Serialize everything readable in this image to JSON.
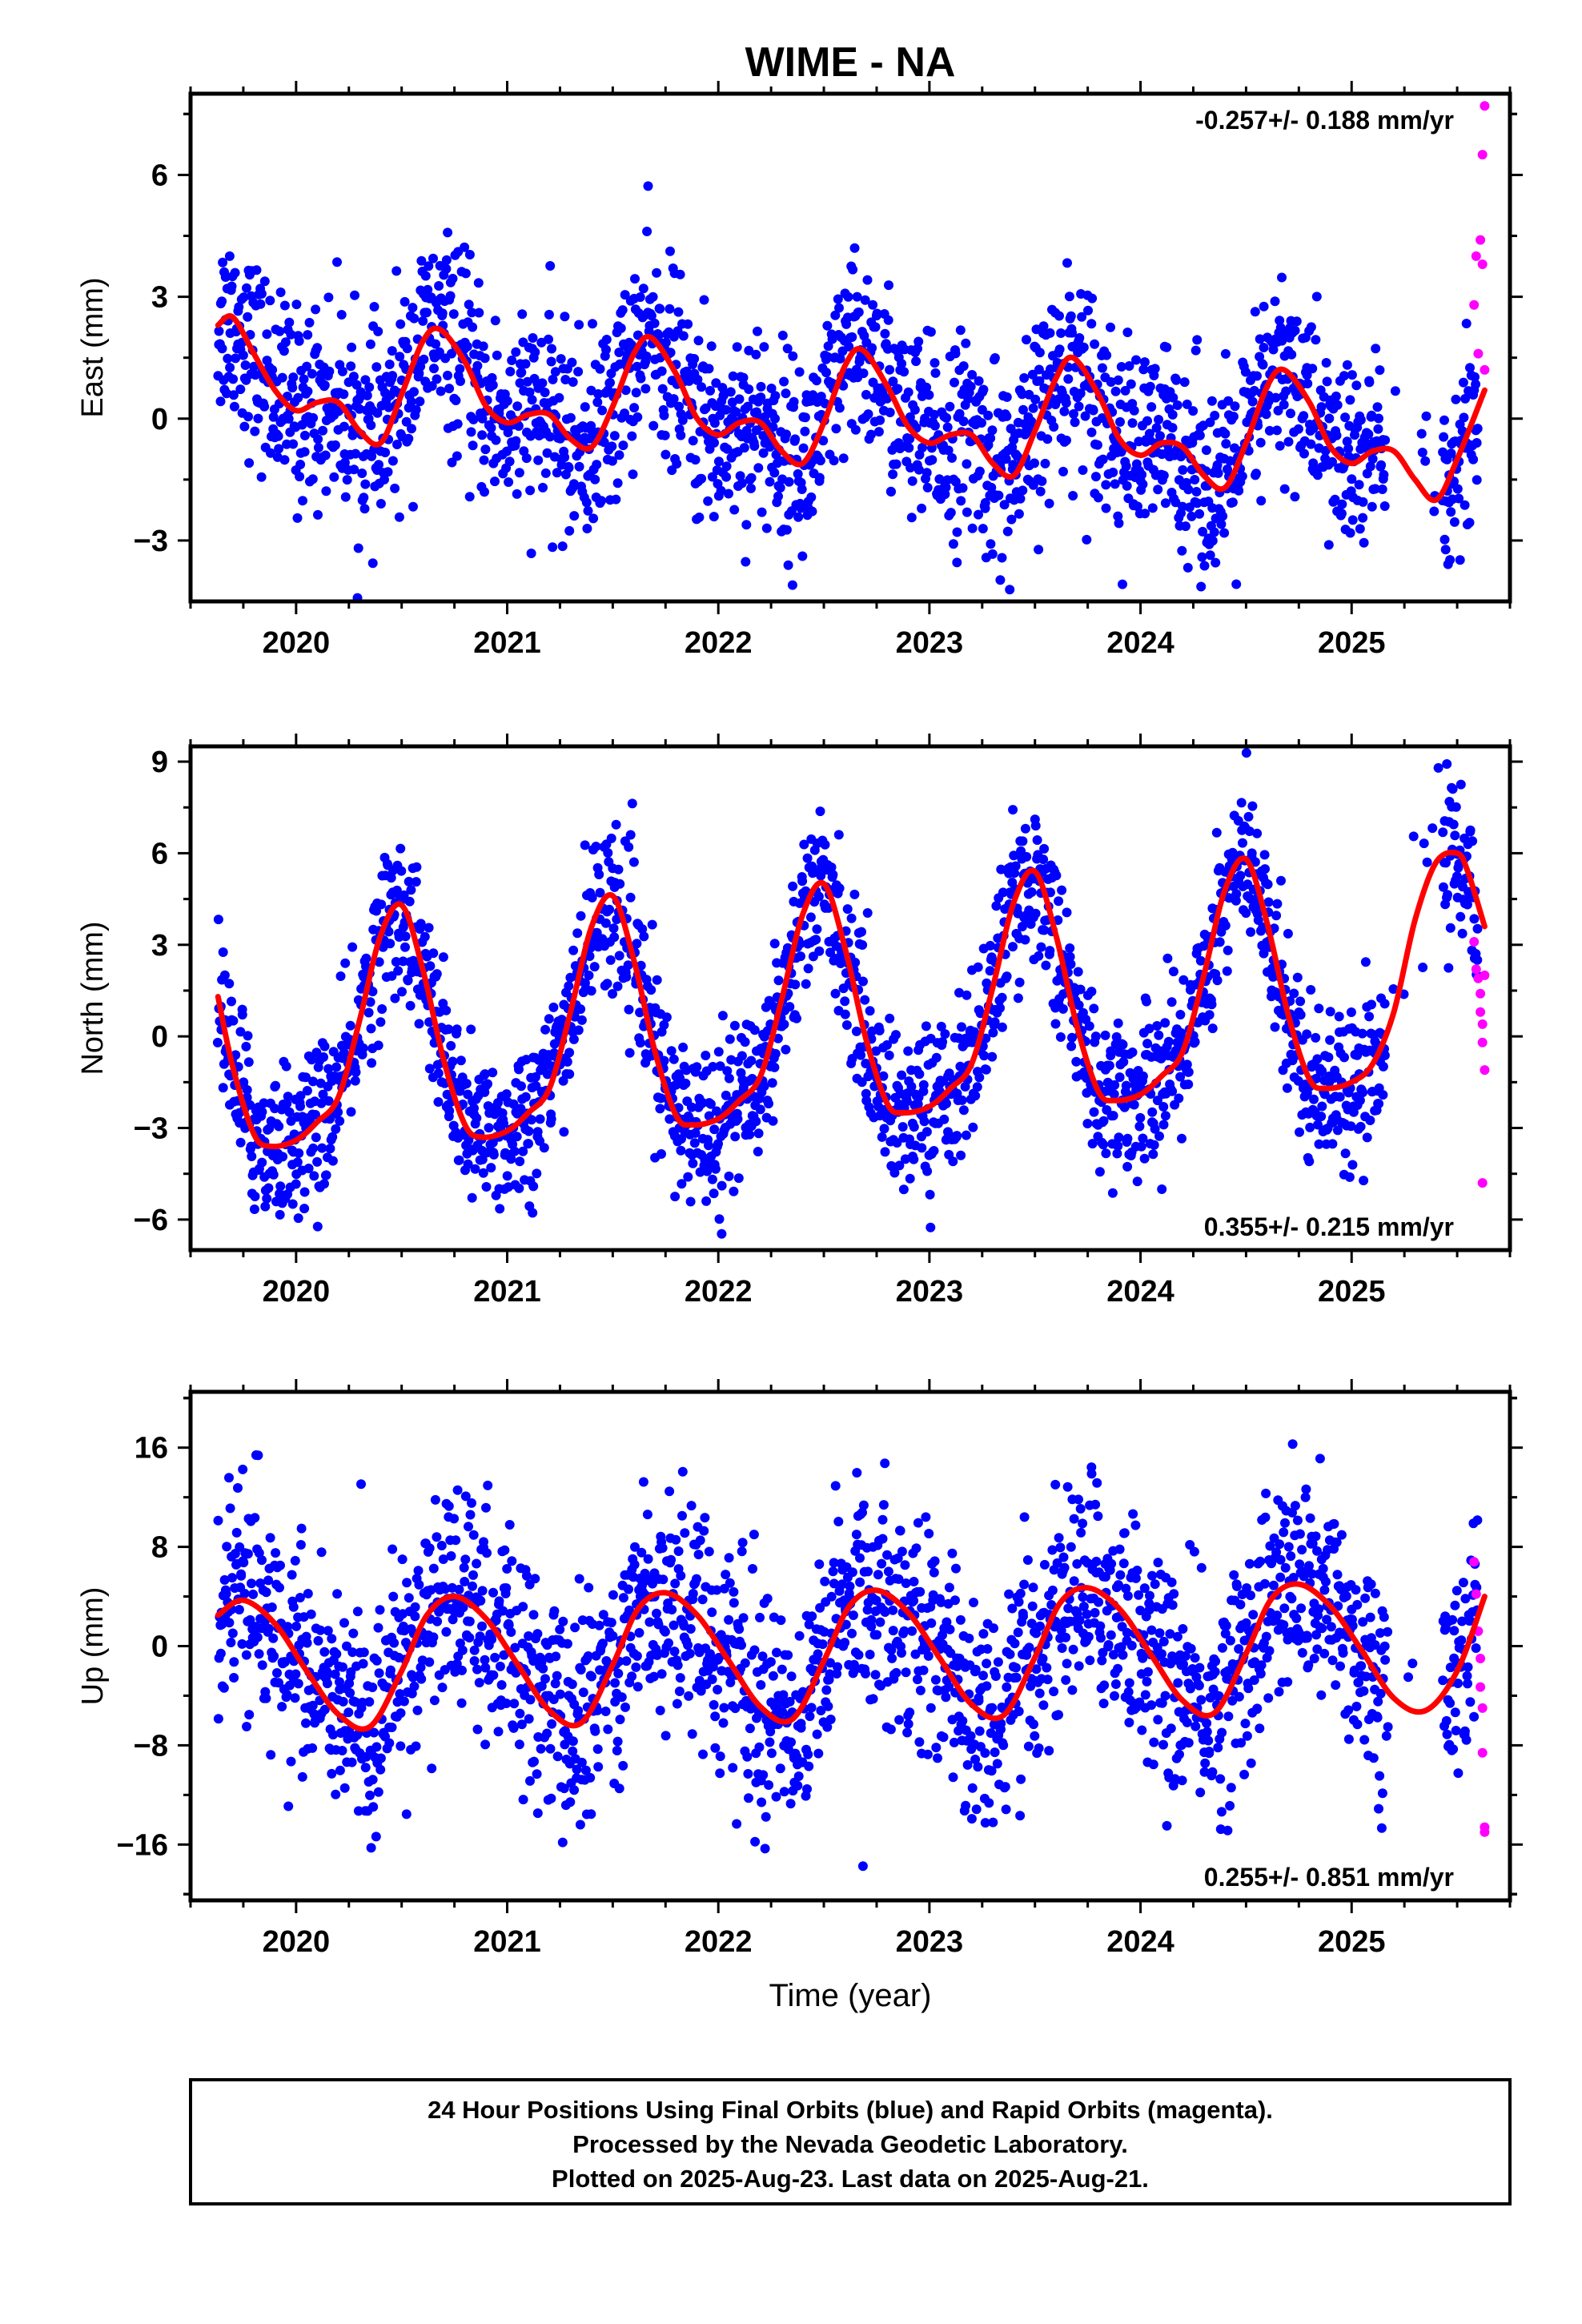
{
  "figure": {
    "title": "WIME - NA",
    "xlabel": "Time (year)",
    "footer": [
      "24 Hour Positions Using Final Orbits (blue) and Rapid Orbits (magenta).",
      "Processed by the Nevada Geodetic Laboratory.",
      "Plotted on 2025-Aug-23. Last data on 2025-Aug-21."
    ]
  },
  "colors": {
    "final_orbits": "#0000ff",
    "rapid_orbits": "#ff00ff",
    "model_fit": "#ff0000",
    "frame": "#000000"
  },
  "chart_data": [
    {
      "type": "scatter",
      "ylabel": "East (mm)",
      "rate_label": "-0.257+/- 0.188 mm/yr",
      "rate_position": "top-right",
      "xlim": [
        2019.5,
        2025.75
      ],
      "ylim": [
        -4.5,
        8.0
      ],
      "xticks": [
        2020,
        2021,
        2022,
        2023,
        2024,
        2025
      ],
      "xtick_labels": [
        "2020",
        "2021",
        "2022",
        "2023",
        "2024",
        "2025"
      ],
      "yticks": [
        -3,
        0,
        3,
        6
      ],
      "ytick_labels": [
        "−3",
        "0",
        "3",
        "6"
      ],
      "model": {
        "name": "model fit",
        "x": [
          2019.63,
          2019.7,
          2019.8,
          2019.9,
          2020.0,
          2020.1,
          2020.2,
          2020.3,
          2020.4,
          2020.5,
          2020.6,
          2020.68,
          2020.8,
          2020.9,
          2021.0,
          2021.1,
          2021.2,
          2021.3,
          2021.4,
          2021.5,
          2021.6,
          2021.68,
          2021.8,
          2021.9,
          2022.0,
          2022.1,
          2022.2,
          2022.3,
          2022.4,
          2022.5,
          2022.6,
          2022.68,
          2022.8,
          2022.9,
          2023.0,
          2023.1,
          2023.2,
          2023.3,
          2023.4,
          2023.5,
          2023.6,
          2023.68,
          2023.8,
          2023.9,
          2024.0,
          2024.1,
          2024.2,
          2024.3,
          2024.4,
          2024.5,
          2024.6,
          2024.68,
          2024.8,
          2024.9,
          2025.0,
          2025.1,
          2025.2,
          2025.3,
          2025.4,
          2025.5,
          2025.63
        ],
        "y": [
          2.3,
          2.5,
          1.6,
          0.7,
          0.2,
          0.4,
          0.4,
          -0.3,
          -0.6,
          0.6,
          1.9,
          2.2,
          1.4,
          0.3,
          -0.1,
          0.1,
          0.1,
          -0.5,
          -0.7,
          0.3,
          1.6,
          2.0,
          1.1,
          0.0,
          -0.4,
          -0.1,
          -0.1,
          -0.8,
          -1.1,
          -0.1,
          1.3,
          1.7,
          0.8,
          -0.2,
          -0.6,
          -0.4,
          -0.4,
          -1.1,
          -1.4,
          -0.3,
          1.0,
          1.5,
          0.6,
          -0.5,
          -0.9,
          -0.6,
          -0.7,
          -1.4,
          -1.7,
          -0.6,
          0.8,
          1.2,
          0.4,
          -0.7,
          -1.1,
          -0.8,
          -0.8,
          -1.5,
          -2.0,
          -1.0,
          0.7
        ]
      },
      "final_orbits_summary": {
        "x_range": [
          2019.63,
          2025.6
        ],
        "typical_spread_mm": 1.2
      },
      "rapid_orbits": {
        "x": [
          2025.58,
          2025.59,
          2025.6,
          2025.61,
          2025.62,
          2025.62,
          2025.63,
          2025.63
        ],
        "y": [
          2.8,
          4.0,
          1.6,
          4.4,
          3.8,
          6.5,
          7.7,
          1.2
        ]
      }
    },
    {
      "type": "scatter",
      "ylabel": "North (mm)",
      "rate_label": "0.355+/- 0.215 mm/yr",
      "rate_position": "bottom-right",
      "xlim": [
        2019.5,
        2025.75
      ],
      "ylim": [
        -7.0,
        9.5
      ],
      "xticks": [
        2020,
        2021,
        2022,
        2023,
        2024,
        2025
      ],
      "xtick_labels": [
        "2020",
        "2021",
        "2022",
        "2023",
        "2024",
        "2025"
      ],
      "yticks": [
        -6,
        -3,
        0,
        3,
        6,
        9
      ],
      "ytick_labels": [
        "−6",
        "−3",
        "0",
        "3",
        "6",
        "9"
      ],
      "model": {
        "name": "model fit",
        "x": [
          2019.63,
          2019.7,
          2019.8,
          2019.88,
          2020.0,
          2020.1,
          2020.2,
          2020.3,
          2020.4,
          2020.5,
          2020.6,
          2020.7,
          2020.8,
          2020.88,
          2021.0,
          2021.1,
          2021.2,
          2021.3,
          2021.4,
          2021.5,
          2021.6,
          2021.7,
          2021.8,
          2021.88,
          2022.0,
          2022.1,
          2022.2,
          2022.3,
          2022.4,
          2022.5,
          2022.6,
          2022.7,
          2022.8,
          2022.88,
          2023.0,
          2023.1,
          2023.2,
          2023.3,
          2023.4,
          2023.5,
          2023.6,
          2023.7,
          2023.8,
          2023.88,
          2024.0,
          2024.1,
          2024.2,
          2024.3,
          2024.4,
          2024.5,
          2024.6,
          2024.7,
          2024.8,
          2024.88,
          2025.0,
          2025.1,
          2025.2,
          2025.3,
          2025.4,
          2025.5,
          2025.55,
          2025.63
        ],
        "y": [
          1.3,
          -1.0,
          -3.2,
          -3.6,
          -3.4,
          -2.8,
          -2.0,
          0.5,
          3.3,
          4.3,
          2.2,
          -0.8,
          -2.9,
          -3.3,
          -3.1,
          -2.5,
          -1.7,
          0.8,
          3.6,
          4.6,
          2.5,
          -0.5,
          -2.6,
          -2.9,
          -2.7,
          -2.1,
          -1.3,
          1.2,
          4.0,
          5.0,
          2.9,
          -0.1,
          -2.2,
          -2.5,
          -2.3,
          -1.7,
          -0.9,
          1.6,
          4.4,
          5.4,
          3.3,
          0.3,
          -1.8,
          -2.1,
          -1.9,
          -1.3,
          -0.5,
          2.0,
          4.8,
          5.8,
          3.7,
          0.7,
          -1.4,
          -1.7,
          -1.5,
          -0.9,
          0.8,
          3.8,
          5.7,
          6.0,
          5.4,
          3.6
        ]
      },
      "final_orbits_summary": {
        "x_range": [
          2019.63,
          2025.6
        ],
        "typical_spread_mm": 1.3
      },
      "rapid_orbits": {
        "x": [
          2025.58,
          2025.59,
          2025.6,
          2025.61,
          2025.61,
          2025.62,
          2025.62,
          2025.63,
          2025.63,
          2025.62
        ],
        "y": [
          3.1,
          2.2,
          1.9,
          1.4,
          0.8,
          0.4,
          -0.2,
          -1.1,
          2.0,
          -4.8
        ]
      }
    },
    {
      "type": "scatter",
      "ylabel": "Up (mm)",
      "rate_label": "0.255+/- 0.851 mm/yr",
      "rate_position": "bottom-right",
      "xlim": [
        2019.5,
        2025.75
      ],
      "ylim": [
        -20.5,
        20.5
      ],
      "xticks": [
        2020,
        2021,
        2022,
        2023,
        2024,
        2025
      ],
      "xtick_labels": [
        "2020",
        "2021",
        "2022",
        "2023",
        "2024",
        "2025"
      ],
      "yticks": [
        -16,
        -8,
        0,
        8,
        16
      ],
      "ytick_labels": [
        "−16",
        "−8",
        "0",
        "8",
        "16"
      ],
      "model": {
        "name": "model fit",
        "x": [
          2019.63,
          2019.75,
          2019.9,
          2020.05,
          2020.2,
          2020.35,
          2020.5,
          2020.62,
          2020.75,
          2020.9,
          2021.05,
          2021.2,
          2021.35,
          2021.5,
          2021.62,
          2021.75,
          2021.9,
          2022.05,
          2022.2,
          2022.35,
          2022.5,
          2022.62,
          2022.75,
          2022.9,
          2023.05,
          2023.2,
          2023.35,
          2023.5,
          2023.62,
          2023.75,
          2023.9,
          2024.05,
          2024.2,
          2024.35,
          2024.5,
          2024.62,
          2024.75,
          2024.9,
          2025.05,
          2025.2,
          2025.35,
          2025.5,
          2025.63
        ],
        "y": [
          2.5,
          3.7,
          1.8,
          -2.0,
          -5.5,
          -6.5,
          -2.0,
          2.5,
          4.0,
          2.2,
          -1.5,
          -5.2,
          -6.2,
          -1.5,
          3.0,
          4.3,
          2.5,
          -1.2,
          -4.9,
          -5.9,
          -1.2,
          3.2,
          4.5,
          2.7,
          -1.0,
          -4.7,
          -5.6,
          -0.9,
          3.5,
          4.7,
          3.0,
          -0.7,
          -4.4,
          -5.4,
          -0.6,
          3.8,
          5.0,
          3.2,
          -0.4,
          -4.2,
          -5.2,
          -2.0,
          4.0
        ]
      },
      "final_orbits_summary": {
        "x_range": [
          2019.63,
          2025.6
        ],
        "typical_spread_mm": 4.5
      },
      "rapid_orbits": {
        "x": [
          2025.58,
          2025.59,
          2025.6,
          2025.61,
          2025.61,
          2025.62,
          2025.62,
          2025.63,
          2025.63
        ],
        "y": [
          6.8,
          4.2,
          1.2,
          -1.0,
          -3.3,
          -5.0,
          -8.6,
          -14.6,
          -15.0
        ]
      }
    }
  ]
}
